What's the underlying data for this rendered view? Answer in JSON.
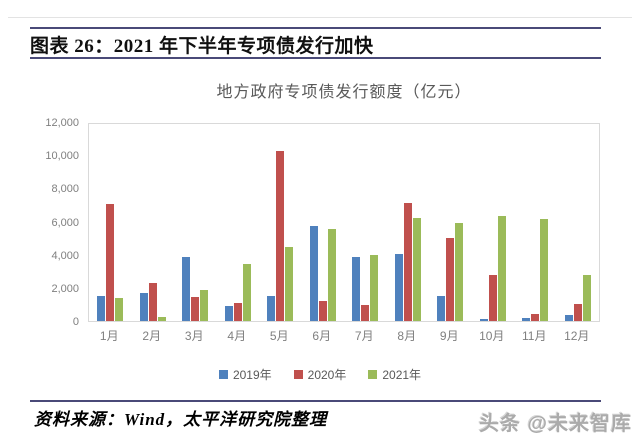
{
  "header": {
    "title": "图表 26：2021 年下半年专项债发行加快"
  },
  "chart_data": {
    "type": "bar",
    "title": "地方政府专项债发行额度（亿元）",
    "categories": [
      "1月",
      "2月",
      "3月",
      "4月",
      "5月",
      "6月",
      "7月",
      "8月",
      "9月",
      "10月",
      "11月",
      "12月"
    ],
    "series": [
      {
        "name": "2019年",
        "color": "#4f81bd",
        "values": [
          1500,
          1700,
          3900,
          900,
          1500,
          5800,
          3900,
          4100,
          1550,
          150,
          200,
          350
        ]
      },
      {
        "name": "2020年",
        "color": "#c0504d",
        "values": [
          7100,
          2300,
          1450,
          1100,
          10350,
          1200,
          950,
          7200,
          5050,
          2800,
          450,
          1050
        ]
      },
      {
        "name": "2021年",
        "color": "#9bbb59",
        "values": [
          1400,
          250,
          1900,
          3450,
          4500,
          5600,
          4000,
          6300,
          5950,
          6400,
          6200,
          2800
        ]
      }
    ],
    "ylim": [
      0,
      12000
    ],
    "ytick_step": 2000,
    "ytick_labels": [
      "0",
      "2,000",
      "4,000",
      "6,000",
      "8,000",
      "10,000",
      "12,000"
    ],
    "grid": false,
    "legend_position": "bottom"
  },
  "footer": {
    "source": "资料来源：Wind，太平洋研究院整理",
    "watermark": "头条 @未来智库"
  },
  "colors": {
    "rule": "#4a4a78",
    "axis_text": "#7f7f7f",
    "chart_title_text": "#595959",
    "plot_border": "#d9d9d9"
  }
}
